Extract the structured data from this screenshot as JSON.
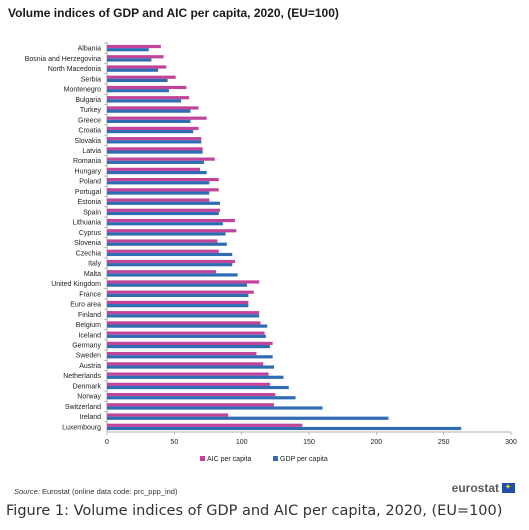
{
  "title": "Volume indices of GDP and AIC per capita, 2020, (EU=100)",
  "source_label": "Source:",
  "source_text": "Eurostat (online data code: prc_ppp_ind)",
  "logo_text": "eurostat",
  "caption": "Figure 1: Volume indices of GDP and AIC per capita, 2020, (EU=100)",
  "colors": {
    "aic": "#c1449a",
    "gdp": "#2f6cb3",
    "axis": "#999999"
  },
  "chart_data": {
    "type": "bar",
    "orientation": "horizontal",
    "title": "Volume indices of GDP and AIC per capita, 2020, (EU=100)",
    "xlim": [
      0,
      300
    ],
    "x_ticks": [
      "0",
      "50",
      "100",
      "150",
      "200",
      "250",
      "300"
    ],
    "grid": false,
    "legend_position": "bottom",
    "categories": [
      "Albania",
      "Bosnia and Herzegovina",
      "North Macedonia",
      "Serbia",
      "Montenegro",
      "Bulgaria",
      "Turkey",
      "Greece",
      "Croatia",
      "Slovakia",
      "Latvia",
      "Romania",
      "Hungary",
      "Poland",
      "Portugal",
      "Estonia",
      "Spain",
      "Lithuania",
      "Cyprus",
      "Slovenia",
      "Czechia",
      "Italy",
      "Malta",
      "United Kingdom",
      "France",
      "Euro area",
      "Finland",
      "Belgium",
      "Iceland",
      "Germany",
      "Sweden",
      "Austria",
      "Netherlands",
      "Denmark",
      "Norway",
      "Switzerland",
      "Ireland",
      "Luxembourg"
    ],
    "series": [
      {
        "name": "AIC per capita",
        "color": "#c1449a",
        "values": [
          40,
          42,
          44,
          51,
          59,
          61,
          68,
          74,
          68,
          70,
          71,
          80,
          69,
          83,
          83,
          76,
          84,
          95,
          96,
          82,
          83,
          95,
          81,
          113,
          109,
          105,
          113,
          114,
          117,
          123,
          111,
          116,
          120,
          121,
          125,
          124,
          90,
          145
        ]
      },
      {
        "name": "GDP per capita",
        "color": "#2f6cb3",
        "values": [
          31,
          33,
          38,
          45,
          46,
          55,
          62,
          62,
          64,
          70,
          71,
          72,
          74,
          76,
          76,
          84,
          83,
          86,
          88,
          89,
          93,
          93,
          97,
          104,
          105,
          105,
          113,
          119,
          118,
          121,
          123,
          124,
          131,
          135,
          140,
          160,
          209,
          263
        ]
      }
    ]
  }
}
